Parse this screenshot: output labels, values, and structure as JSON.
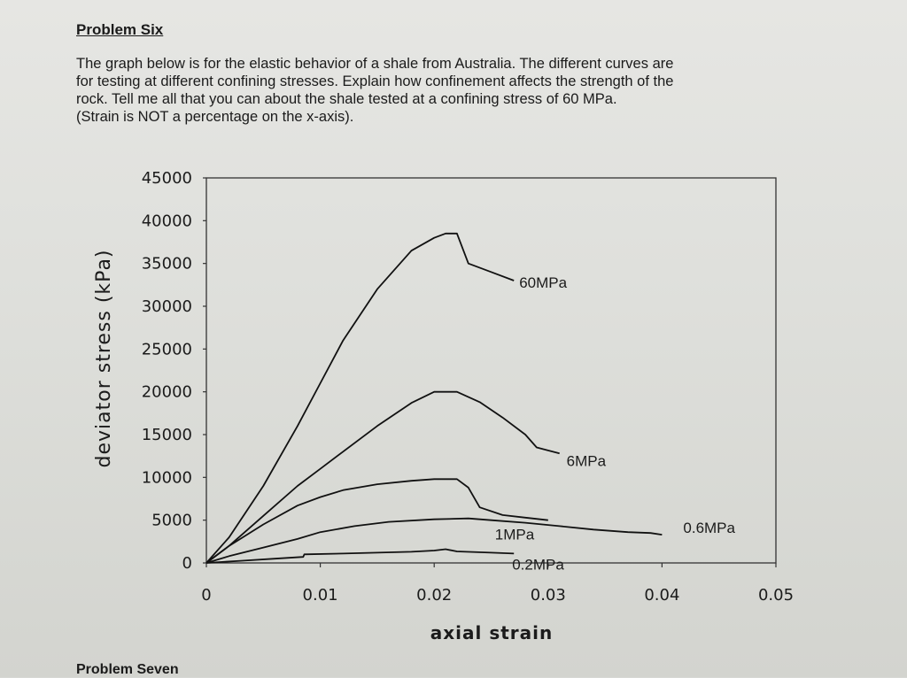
{
  "document": {
    "problem_title": "Problem Six",
    "paragraph_lines": [
      "The graph below is for the elastic behavior of a shale from Australia.  The different curves are",
      "for testing at different confining stresses.  Explain how confinement affects the strength of the",
      "rock.  Tell me all that you can about the shale tested at a confining stress of 60 MPa.",
      "(Strain is NOT a percentage on the x-axis)."
    ],
    "next_problem_title": "Problem Seven"
  },
  "chart_data": {
    "type": "line",
    "title": "",
    "xlabel": "axial strain",
    "ylabel": "deviator stress (kPa)",
    "xlim": [
      0,
      0.05
    ],
    "ylim": [
      0,
      45000
    ],
    "x_ticks": [
      "0",
      "0.01",
      "0.02",
      "0.03",
      "0.04",
      "0.05"
    ],
    "y_ticks": [
      "0",
      "5000",
      "10000",
      "15000",
      "20000",
      "25000",
      "30000",
      "35000",
      "40000",
      "45000"
    ],
    "x_tick_values": [
      0,
      0.01,
      0.02,
      0.03,
      0.04,
      0.05
    ],
    "y_tick_values": [
      0,
      5000,
      10000,
      15000,
      20000,
      25000,
      30000,
      35000,
      40000,
      45000
    ],
    "grid": false,
    "series": [
      {
        "name": "60MPa",
        "x": [
          0,
          0.002,
          0.005,
          0.008,
          0.01,
          0.012,
          0.015,
          0.018,
          0.02,
          0.021,
          0.022,
          0.023,
          0.025,
          0.027
        ],
        "y": [
          0,
          3000,
          9000,
          16000,
          21000,
          26000,
          32000,
          36500,
          38000,
          38500,
          38500,
          35000,
          34000,
          33000
        ]
      },
      {
        "name": "6MPa",
        "x": [
          0,
          0.002,
          0.005,
          0.008,
          0.01,
          0.012,
          0.015,
          0.018,
          0.02,
          0.022,
          0.024,
          0.026,
          0.028,
          0.029,
          0.031
        ],
        "y": [
          0,
          2000,
          5500,
          9000,
          11000,
          13000,
          16000,
          18700,
          20000,
          20000,
          18800,
          17000,
          15000,
          13500,
          12800
        ]
      },
      {
        "name": "1MPa",
        "x": [
          0,
          0.002,
          0.005,
          0.008,
          0.01,
          0.012,
          0.015,
          0.018,
          0.02,
          0.022,
          0.023,
          0.024,
          0.026,
          0.028,
          0.03
        ],
        "y": [
          0,
          2000,
          4500,
          6700,
          7700,
          8500,
          9200,
          9600,
          9800,
          9800,
          8800,
          6500,
          5600,
          5300,
          5000
        ]
      },
      {
        "name": "0.6MPa",
        "x": [
          0,
          0.002,
          0.005,
          0.008,
          0.01,
          0.013,
          0.016,
          0.02,
          0.023,
          0.025,
          0.028,
          0.031,
          0.034,
          0.037,
          0.039,
          0.04
        ],
        "y": [
          0,
          800,
          1800,
          2800,
          3600,
          4300,
          4800,
          5100,
          5200,
          5000,
          4700,
          4300,
          3900,
          3600,
          3500,
          3300
        ]
      },
      {
        "name": "0.2MPa",
        "x": [
          0,
          0.003,
          0.006,
          0.0085,
          0.0086,
          0.012,
          0.015,
          0.018,
          0.02,
          0.021,
          0.022,
          0.025,
          0.027
        ],
        "y": [
          0,
          250,
          500,
          700,
          1000,
          1100,
          1200,
          1300,
          1450,
          1600,
          1350,
          1200,
          1100
        ]
      }
    ]
  }
}
